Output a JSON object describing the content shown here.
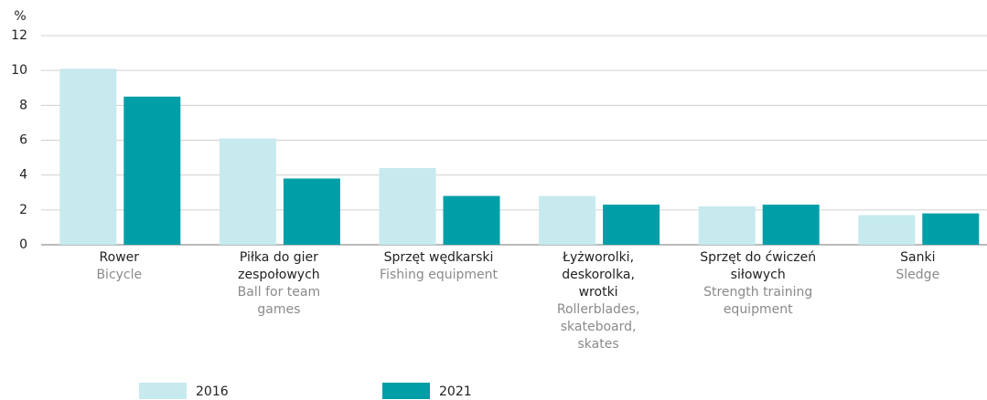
{
  "chart_data": {
    "type": "bar",
    "y_label": "%",
    "categories": [
      {
        "pl": [
          "Rower"
        ],
        "en": [
          "Bicycle"
        ]
      },
      {
        "pl": [
          "Piłka do gier",
          "zespołowych"
        ],
        "en": [
          "Ball for team",
          "games"
        ]
      },
      {
        "pl": [
          "Sprzęt wędkarski"
        ],
        "en": [
          "Fishing equipment"
        ]
      },
      {
        "pl": [
          "Łyżworolki,",
          "deskorolka,",
          "wrotki"
        ],
        "en": [
          "Rollerblades,",
          "skateboard,",
          "skates"
        ]
      },
      {
        "pl": [
          "Sprzęt do ćwiczeń",
          "siłowych"
        ],
        "en": [
          "Strength training",
          "equipment"
        ]
      },
      {
        "pl": [
          "Sanki"
        ],
        "en": [
          "Sledge"
        ]
      }
    ],
    "series": [
      {
        "name": "2016",
        "color": "#c6eaee",
        "values": [
          10.1,
          6.1,
          4.4,
          2.8,
          2.2,
          1.7
        ]
      },
      {
        "name": "2021",
        "color": "#009ea7",
        "values": [
          8.5,
          3.8,
          2.8,
          2.3,
          2.3,
          1.8
        ]
      }
    ],
    "ylim": [
      0,
      12
    ],
    "yticks": [
      0,
      2,
      4,
      6,
      8,
      10,
      12
    ],
    "grid": true
  }
}
